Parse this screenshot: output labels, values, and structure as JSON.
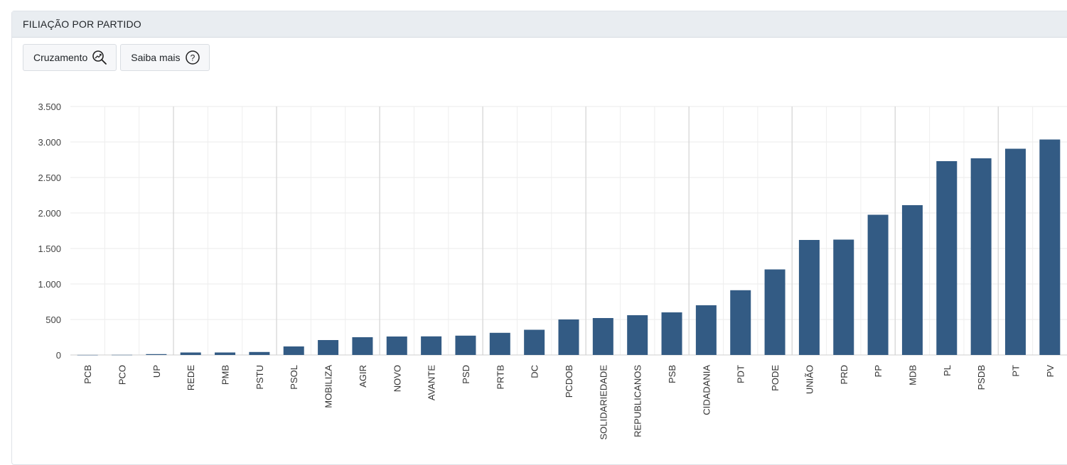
{
  "header": {
    "title": "FILIAÇÃO POR PARTIDO"
  },
  "toolbar": {
    "cruzamento_label": "Cruzamento",
    "saiba_mais_label": "Saiba mais"
  },
  "icons": {
    "cruzamento": "trend-magnifier-icon",
    "saiba_mais": "question-circle-icon"
  },
  "colors": {
    "bar": "#335b84",
    "grid": "#e6e6e6",
    "header_bg": "#e9edf1"
  },
  "chart_data": {
    "type": "bar",
    "title": "",
    "xlabel": "",
    "ylabel": "",
    "ylim": [
      0,
      3500
    ],
    "yticks": [
      0,
      500,
      1000,
      1500,
      2000,
      2500,
      3000,
      3500
    ],
    "ytick_labels": [
      "0",
      "500",
      "1.000",
      "1.500",
      "2.000",
      "2.500",
      "3.000",
      "3.500"
    ],
    "grid": true,
    "legend": "none",
    "categories": [
      "PCB",
      "PCO",
      "UP",
      "REDE",
      "PMB",
      "PSTU",
      "PSOL",
      "MOBILIZA",
      "AGIR",
      "NOVO",
      "AVANTE",
      "PSD",
      "PRTB",
      "DC",
      "PCDOB",
      "SOLIDARIEDADE",
      "REPUBLICANOS",
      "PSB",
      "CIDADANIA",
      "PDT",
      "PODE",
      "UNIÃO",
      "PRD",
      "PP",
      "MDB",
      "PL",
      "PSDB",
      "PT",
      "PV"
    ],
    "values": [
      1,
      2,
      12,
      35,
      35,
      42,
      120,
      210,
      250,
      260,
      262,
      272,
      312,
      355,
      500,
      520,
      560,
      600,
      700,
      912,
      1205,
      1620,
      1625,
      1975,
      2110,
      2730,
      2770,
      2905,
      3035
    ]
  }
}
